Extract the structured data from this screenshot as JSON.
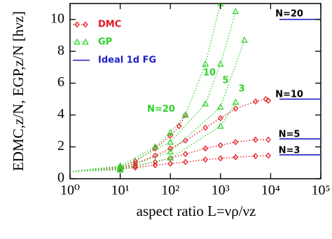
{
  "chart_data": {
    "type": "line",
    "xlabel": "aspect ratio L=νρ/νz",
    "ylabel": "EDMC,z/N, EGP,z/N [hνz]",
    "xscale": "log",
    "xlim": [
      1,
      100000
    ],
    "ylim": [
      0,
      11
    ],
    "xticks": [
      {
        "value": 1,
        "label": "10⁰"
      },
      {
        "value": 10,
        "label": "10¹"
      },
      {
        "value": 100,
        "label": "10²"
      },
      {
        "value": 1000,
        "label": "10³"
      },
      {
        "value": 10000,
        "label": "10⁴"
      },
      {
        "value": 100000,
        "label": "10⁵"
      }
    ],
    "yticks": [
      0,
      2,
      4,
      6,
      8,
      10
    ],
    "groups": [
      {
        "name": "DMC",
        "color": "#e3141c",
        "marker": "diamond",
        "curves": [
          {
            "label": "3",
            "x": [
              1,
              10,
              20,
              50,
              100,
              200,
              500,
              1000,
              2000,
              5000,
              9000
            ],
            "values": [
              0.45,
              0.6,
              0.7,
              0.85,
              0.95,
              1.05,
              1.2,
              1.28,
              1.35,
              1.42,
              1.45
            ]
          },
          {
            "label": "5",
            "x": [
              1,
              10,
              20,
              50,
              100,
              200,
              500,
              1000,
              2000,
              5000,
              9000
            ],
            "values": [
              0.45,
              0.65,
              0.8,
              1.05,
              1.3,
              1.55,
              1.9,
              2.1,
              2.3,
              2.45,
              2.45
            ]
          },
          {
            "label": "10",
            "x": [
              1,
              10,
              20,
              50,
              100,
              200,
              500,
              1000,
              2000,
              5000,
              8000,
              9000
            ],
            "values": [
              0.45,
              0.7,
              0.95,
              1.45,
              1.9,
              2.4,
              3.2,
              3.8,
              4.4,
              4.85,
              5.0,
              4.9
            ]
          },
          {
            "label": "20",
            "x": [
              1,
              10,
              20,
              50,
              100,
              150,
              200
            ],
            "values": [
              0.45,
              0.75,
              1.1,
              1.9,
              2.7,
              3.3,
              4.0
            ]
          }
        ]
      },
      {
        "name": "GP",
        "color": "#2bd12b",
        "marker": "triangle",
        "curves": [
          {
            "label": "3",
            "x": [
              1,
              10,
              100,
              1000,
              2000
            ],
            "values": [
              0.45,
              0.55,
              1.3,
              3.3,
              4.8
            ]
          },
          {
            "label": "5",
            "x": [
              1,
              10,
              100,
              1000,
              3000
            ],
            "values": [
              0.45,
              0.6,
              1.7,
              4.5,
              8.7
            ]
          },
          {
            "label": "10",
            "x": [
              1,
              10,
              100,
              500,
              1000,
              2000
            ],
            "values": [
              0.45,
              0.7,
              2.3,
              4.7,
              7.2,
              10.5
            ]
          },
          {
            "label": "N=20",
            "x": [
              1,
              10,
              50,
              100,
              200,
              500,
              1000
            ],
            "values": [
              0.45,
              0.8,
              2.0,
              2.9,
              4.0,
              7.2,
              11
            ]
          }
        ]
      },
      {
        "name": "Ideal 1d FG",
        "color": "#1f1fc8",
        "marker": "none",
        "curves": [
          {
            "label": "N=3",
            "x": [
              15000,
              100000
            ],
            "values": [
              1.5,
              1.5
            ]
          },
          {
            "label": "N=5",
            "x": [
              15000,
              100000
            ],
            "values": [
              2.5,
              2.5
            ]
          },
          {
            "label": "N=10",
            "x": [
              15000,
              100000
            ],
            "values": [
              5,
              5
            ]
          },
          {
            "label": "N=20",
            "x": [
              15000,
              100000
            ],
            "values": [
              10,
              10
            ]
          }
        ]
      }
    ]
  }
}
